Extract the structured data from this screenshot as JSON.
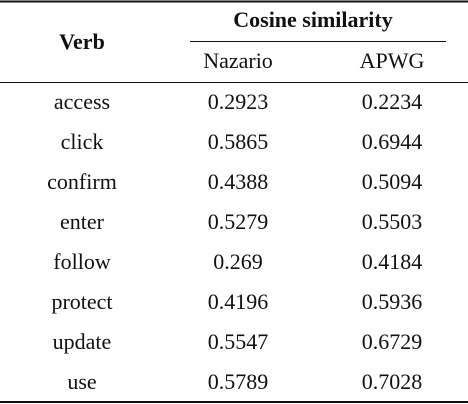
{
  "table": {
    "header": {
      "verb": "Verb",
      "group": "Cosine similarity",
      "columns": [
        "Nazario",
        "APWG"
      ]
    },
    "rows": [
      [
        "access",
        "0.2923",
        "0.2234"
      ],
      [
        "click",
        "0.5865",
        "0.6944"
      ],
      [
        "confirm",
        "0.4388",
        "0.5094"
      ],
      [
        "enter",
        "0.5279",
        "0.5503"
      ],
      [
        "follow",
        "0.269",
        "0.4184"
      ],
      [
        "protect",
        "0.4196",
        "0.5936"
      ],
      [
        "update",
        "0.5547",
        "0.6729"
      ],
      [
        "use",
        "0.5789",
        "0.7028"
      ]
    ]
  }
}
